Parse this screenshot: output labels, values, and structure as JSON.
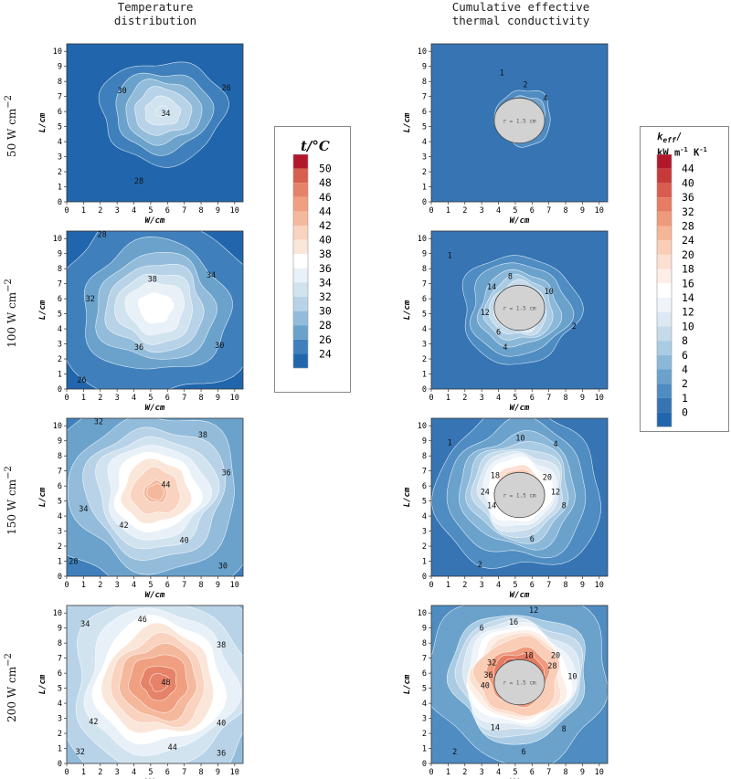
{
  "titles": {
    "left": [
      "Temperature",
      "distribution"
    ],
    "right": [
      "Cumulative effective",
      "thermal conductivity"
    ]
  },
  "rows": [
    {
      "power": "50",
      "unit": "W cm",
      "exp": "−2"
    },
    {
      "power": "100",
      "unit": "W cm",
      "exp": "−2"
    },
    {
      "power": "150",
      "unit": "W cm",
      "exp": "−2"
    },
    {
      "power": "200",
      "unit": "W cm",
      "exp": "−2"
    }
  ],
  "legend_temp": {
    "title": "t/°C",
    "levels": [
      "50",
      "48",
      "46",
      "44",
      "42",
      "40",
      "38",
      "36",
      "34",
      "32",
      "30",
      "28",
      "26",
      "24"
    ],
    "colors": [
      "#b2182b",
      "#d6604d",
      "#e58268",
      "#f09f80",
      "#f4b89c",
      "#f9d3bf",
      "#fbe6da",
      "#ffffff",
      "#e8f0f8",
      "#d2e3f0",
      "#b8d3e7",
      "#93bcdb",
      "#6aa2cc",
      "#3f80bc",
      "#2166ac"
    ]
  },
  "legend_k": {
    "title": "k",
    "title_sub": "eff",
    "title_unit": "kW m",
    "title_unit_exp1": "-1",
    "title_unit_k": " K",
    "title_unit_exp2": "-1",
    "levels": [
      "44",
      "40",
      "36",
      "32",
      "28",
      "24",
      "20",
      "18",
      "16",
      "14",
      "12",
      "10",
      "8",
      "6",
      "4",
      "2",
      "1",
      "0"
    ],
    "colors": [
      "#b2182b",
      "#c83a3a",
      "#d95d4f",
      "#e67c63",
      "#ef9a7c",
      "#f5b597",
      "#f9cdb6",
      "#fbdfd0",
      "#fdeee6",
      "#ffffff",
      "#eef4fa",
      "#dce9f3",
      "#c5dbec",
      "#a9cbe3",
      "#8bb8d9",
      "#6aa2cc",
      "#4e8cc2",
      "#3674b4",
      "#2166ac"
    ]
  },
  "chart_data": [
    {
      "type": "heatmap",
      "panel": "temperature",
      "power_W_cm2": 50,
      "xlabel": "W/cm",
      "ylabel": "L/cm",
      "xlim": [
        0,
        10.5
      ],
      "ylim": [
        0,
        10.5
      ],
      "x_ticks": [
        0,
        1,
        2,
        3,
        4,
        5,
        6,
        7,
        8,
        9,
        10
      ],
      "y_ticks": [
        0,
        1,
        2,
        3,
        4,
        5,
        6,
        7,
        8,
        9,
        10
      ],
      "contours": [
        26,
        28,
        30,
        32,
        34,
        36
      ],
      "labels": [
        {
          "text": "30",
          "x": 3.3,
          "y": 7.4
        },
        {
          "text": "26",
          "x": 9.5,
          "y": 7.6
        },
        {
          "text": "34",
          "x": 5.9,
          "y": 5.9
        },
        {
          "text": "28",
          "x": 4.3,
          "y": 1.4
        }
      ]
    },
    {
      "type": "heatmap",
      "panel": "conductivity",
      "power_W_cm2": 50,
      "xlabel": "W/cm",
      "ylabel": "L/cm",
      "xlim": [
        0,
        10.5
      ],
      "ylim": [
        0,
        10.5
      ],
      "x_ticks": [
        0,
        1,
        2,
        3,
        4,
        5,
        6,
        7,
        8,
        9,
        10
      ],
      "y_ticks": [
        0,
        1,
        2,
        3,
        4,
        5,
        6,
        7,
        8,
        9,
        10
      ],
      "hole": "r = 1.5 cm",
      "contours": [
        1,
        2,
        4
      ],
      "labels": [
        {
          "text": "1",
          "x": 4.2,
          "y": 8.6
        },
        {
          "text": "2",
          "x": 5.6,
          "y": 7.8
        },
        {
          "text": "4",
          "x": 6.8,
          "y": 6.9
        }
      ]
    },
    {
      "type": "heatmap",
      "panel": "temperature",
      "power_W_cm2": 100,
      "xlabel": "W/cm",
      "ylabel": "L/cm",
      "xlim": [
        0,
        10.5
      ],
      "ylim": [
        0,
        10.5
      ],
      "x_ticks": [
        0,
        1,
        2,
        3,
        4,
        5,
        6,
        7,
        8,
        9,
        10
      ],
      "y_ticks": [
        0,
        1,
        2,
        3,
        4,
        5,
        6,
        7,
        8,
        9,
        10
      ],
      "contours": [
        26,
        28,
        30,
        32,
        34,
        36,
        38
      ],
      "labels": [
        {
          "text": "28",
          "x": 2.1,
          "y": 10.3
        },
        {
          "text": "38",
          "x": 5.1,
          "y": 7.3
        },
        {
          "text": "34",
          "x": 8.6,
          "y": 7.6
        },
        {
          "text": "32",
          "x": 1.4,
          "y": 6.0
        },
        {
          "text": "36",
          "x": 4.3,
          "y": 2.8
        },
        {
          "text": "30",
          "x": 9.1,
          "y": 2.9
        },
        {
          "text": "26",
          "x": 0.9,
          "y": 0.6
        }
      ]
    },
    {
      "type": "heatmap",
      "panel": "conductivity",
      "power_W_cm2": 100,
      "xlabel": "W/cm",
      "ylabel": "L/cm",
      "xlim": [
        0,
        10.5
      ],
      "ylim": [
        0,
        10.5
      ],
      "x_ticks": [
        0,
        1,
        2,
        3,
        4,
        5,
        6,
        7,
        8,
        9,
        10
      ],
      "y_ticks": [
        0,
        1,
        2,
        3,
        4,
        5,
        6,
        7,
        8,
        9,
        10
      ],
      "hole": "r = 1.5 cm",
      "contours": [
        1,
        2,
        4,
        6,
        8,
        10,
        12,
        14
      ],
      "labels": [
        {
          "text": "1",
          "x": 1.1,
          "y": 8.9
        },
        {
          "text": "8",
          "x": 4.7,
          "y": 7.5
        },
        {
          "text": "14",
          "x": 3.6,
          "y": 6.8
        },
        {
          "text": "10",
          "x": 7.0,
          "y": 6.5
        },
        {
          "text": "12",
          "x": 3.2,
          "y": 5.1
        },
        {
          "text": "2",
          "x": 8.5,
          "y": 4.2
        },
        {
          "text": "6",
          "x": 4.0,
          "y": 3.8
        },
        {
          "text": "4",
          "x": 4.4,
          "y": 2.8
        }
      ]
    },
    {
      "type": "heatmap",
      "panel": "temperature",
      "power_W_cm2": 150,
      "xlabel": "W/cm",
      "ylabel": "L/cm",
      "xlim": [
        0,
        10.5
      ],
      "ylim": [
        0,
        10.5
      ],
      "x_ticks": [
        0,
        1,
        2,
        3,
        4,
        5,
        6,
        7,
        8,
        9,
        10
      ],
      "y_ticks": [
        0,
        1,
        2,
        3,
        4,
        5,
        6,
        7,
        8,
        9,
        10
      ],
      "contours": [
        28,
        30,
        32,
        34,
        36,
        38,
        40,
        42,
        44
      ],
      "labels": [
        {
          "text": "32",
          "x": 1.9,
          "y": 10.3
        },
        {
          "text": "38",
          "x": 8.1,
          "y": 9.4
        },
        {
          "text": "36",
          "x": 9.5,
          "y": 6.9
        },
        {
          "text": "44",
          "x": 5.9,
          "y": 6.1
        },
        {
          "text": "34",
          "x": 1.0,
          "y": 4.5
        },
        {
          "text": "42",
          "x": 3.4,
          "y": 3.4
        },
        {
          "text": "40",
          "x": 7.0,
          "y": 2.4
        },
        {
          "text": "28",
          "x": 0.4,
          "y": 1.0
        },
        {
          "text": "30",
          "x": 9.3,
          "y": 0.7
        }
      ]
    },
    {
      "type": "heatmap",
      "panel": "conductivity",
      "power_W_cm2": 150,
      "xlabel": "W/cm",
      "ylabel": "L/cm",
      "xlim": [
        0,
        10.5
      ],
      "ylim": [
        0,
        10.5
      ],
      "x_ticks": [
        0,
        1,
        2,
        3,
        4,
        5,
        6,
        7,
        8,
        9,
        10
      ],
      "y_ticks": [
        0,
        1,
        2,
        3,
        4,
        5,
        6,
        7,
        8,
        9,
        10
      ],
      "hole": "r = 1.5 cm",
      "contours": [
        1,
        2,
        4,
        6,
        8,
        10,
        12,
        14,
        18,
        20,
        24
      ],
      "labels": [
        {
          "text": "1",
          "x": 1.1,
          "y": 8.9
        },
        {
          "text": "10",
          "x": 5.3,
          "y": 9.2
        },
        {
          "text": "4",
          "x": 7.4,
          "y": 8.8
        },
        {
          "text": "18",
          "x": 3.8,
          "y": 6.7
        },
        {
          "text": "20",
          "x": 6.9,
          "y": 6.6
        },
        {
          "text": "24",
          "x": 3.2,
          "y": 5.6
        },
        {
          "text": "12",
          "x": 7.4,
          "y": 5.6
        },
        {
          "text": "14",
          "x": 3.6,
          "y": 4.7
        },
        {
          "text": "8",
          "x": 7.9,
          "y": 4.7
        },
        {
          "text": "6",
          "x": 6.0,
          "y": 2.5
        },
        {
          "text": "2",
          "x": 2.9,
          "y": 0.8
        }
      ]
    },
    {
      "type": "heatmap",
      "panel": "temperature",
      "power_W_cm2": 200,
      "xlabel": "W/cm",
      "ylabel": "L/cm",
      "xlim": [
        0,
        10.5
      ],
      "ylim": [
        0,
        10.5
      ],
      "x_ticks": [
        0,
        1,
        2,
        3,
        4,
        5,
        6,
        7,
        8,
        9,
        10
      ],
      "y_ticks": [
        0,
        1,
        2,
        3,
        4,
        5,
        6,
        7,
        8,
        9,
        10
      ],
      "contours": [
        32,
        34,
        36,
        38,
        40,
        42,
        44,
        46,
        48
      ],
      "labels": [
        {
          "text": "46",
          "x": 4.5,
          "y": 9.6
        },
        {
          "text": "34",
          "x": 1.1,
          "y": 9.3
        },
        {
          "text": "38",
          "x": 9.2,
          "y": 7.9
        },
        {
          "text": "48",
          "x": 5.9,
          "y": 5.4
        },
        {
          "text": "42",
          "x": 1.6,
          "y": 2.8
        },
        {
          "text": "40",
          "x": 9.2,
          "y": 2.7
        },
        {
          "text": "44",
          "x": 6.3,
          "y": 1.1
        },
        {
          "text": "32",
          "x": 0.8,
          "y": 0.8
        },
        {
          "text": "36",
          "x": 9.2,
          "y": 0.7
        }
      ]
    },
    {
      "type": "heatmap",
      "panel": "conductivity",
      "power_W_cm2": 200,
      "xlabel": "W/cm",
      "ylabel": "L/cm",
      "xlim": [
        0,
        10.5
      ],
      "ylim": [
        0,
        10.5
      ],
      "x_ticks": [
        0,
        1,
        2,
        3,
        4,
        5,
        6,
        7,
        8,
        9,
        10
      ],
      "y_ticks": [
        0,
        1,
        2,
        3,
        4,
        5,
        6,
        7,
        8,
        9,
        10
      ],
      "hole": "r = 1.5 cm",
      "contours": [
        2,
        6,
        8,
        10,
        12,
        14,
        16,
        18,
        20,
        28,
        32,
        36,
        40
      ],
      "labels": [
        {
          "text": "12",
          "x": 6.1,
          "y": 10.2
        },
        {
          "text": "16",
          "x": 4.9,
          "y": 9.4
        },
        {
          "text": "6",
          "x": 3.0,
          "y": 9.0
        },
        {
          "text": "18",
          "x": 5.8,
          "y": 7.2
        },
        {
          "text": "20",
          "x": 7.4,
          "y": 7.2
        },
        {
          "text": "32",
          "x": 3.6,
          "y": 6.7
        },
        {
          "text": "28",
          "x": 7.2,
          "y": 6.5
        },
        {
          "text": "36",
          "x": 3.4,
          "y": 5.9
        },
        {
          "text": "10",
          "x": 8.4,
          "y": 5.8
        },
        {
          "text": "40",
          "x": 3.2,
          "y": 5.2
        },
        {
          "text": "14",
          "x": 3.8,
          "y": 2.4
        },
        {
          "text": "8",
          "x": 7.9,
          "y": 2.3
        },
        {
          "text": "6",
          "x": 5.5,
          "y": 0.8
        },
        {
          "text": "2",
          "x": 1.4,
          "y": 0.8
        }
      ]
    }
  ]
}
